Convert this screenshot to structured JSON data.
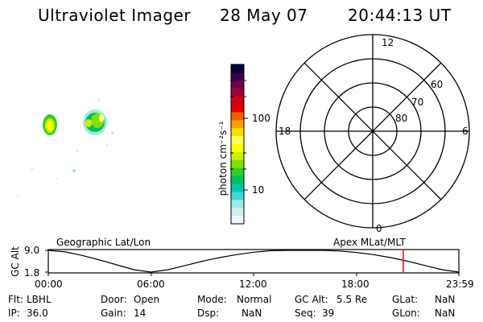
{
  "header": {
    "instrument": "Ultraviolet Imager",
    "date": "28 May 07",
    "time": "20:44:13 UT"
  },
  "colorbar": {
    "label": "photon cm⁻²s⁻¹",
    "ticks": [
      "100",
      "10"
    ],
    "colors": [
      "#000040",
      "#3a0048",
      "#6a004a",
      "#a00030",
      "#c80018",
      "#e00000",
      "#f06000",
      "#f8a000",
      "#f8e000",
      "#ffff60",
      "#ffff00",
      "#c8f000",
      "#80e000",
      "#30d030",
      "#00c060",
      "#00c8b0",
      "#40d8d8",
      "#a0e8e8",
      "#d0f0f0",
      "#f0f8f8"
    ]
  },
  "polar": {
    "mlt_labels": [
      "12",
      "18",
      "6",
      "0"
    ],
    "mlat_labels": [
      "60",
      "70",
      "80"
    ]
  },
  "timeline": {
    "title_left": "Geographic Lat/Lon",
    "title_right": "Apex MLat/MLT",
    "ylabel": "GC Alt",
    "ytick_top": "9.0",
    "ytick_bottom": "1.8",
    "xticks": [
      "00:00",
      "06:00",
      "12:00",
      "18:00",
      "23:59"
    ],
    "marker_color": "#ff0000"
  },
  "info": {
    "flt_label": "Flt:",
    "flt_value": "LBHL",
    "ip_label": "IP:",
    "ip_value": "36.0",
    "door_label": "Door:",
    "door_value": "Open",
    "gain_label": "Gain:",
    "gain_value": "14",
    "mode_label": "Mode:",
    "mode_value": "Normal",
    "dsp_label": "Dsp:",
    "dsp_value": "NaN",
    "gcalt_label": "GC Alt:",
    "gcalt_value": "5.5 Re",
    "seq_label": "Seq:",
    "seq_value": "39",
    "glat_label": "GLat:",
    "glat_value": "NaN",
    "glon_label": "GLon:",
    "glon_value": "NaN"
  },
  "chart_data": {
    "type": "line",
    "title": "",
    "xlabel": "",
    "ylabel": "GC Alt",
    "x": [
      "00:00",
      "01:00",
      "02:00",
      "03:00",
      "04:00",
      "05:00",
      "06:00",
      "07:00",
      "08:00",
      "09:00",
      "10:00",
      "11:00",
      "12:00",
      "13:00",
      "14:00",
      "15:00",
      "16:00",
      "17:00",
      "18:00",
      "19:00",
      "20:00",
      "21:00",
      "22:00",
      "23:00",
      "23:59"
    ],
    "series": [
      {
        "values": [
          9.0,
          8.5,
          7.3,
          5.8,
          4.2,
          2.6,
          1.8,
          2.6,
          4.0,
          5.4,
          6.6,
          7.6,
          8.4,
          8.9,
          9.1,
          9.2,
          9.1,
          8.8,
          8.3,
          7.6,
          6.6,
          5.4,
          4.0,
          2.6,
          1.8
        ]
      }
    ],
    "ylim": [
      1.8,
      9.0
    ],
    "current_time": "20:44:13"
  }
}
